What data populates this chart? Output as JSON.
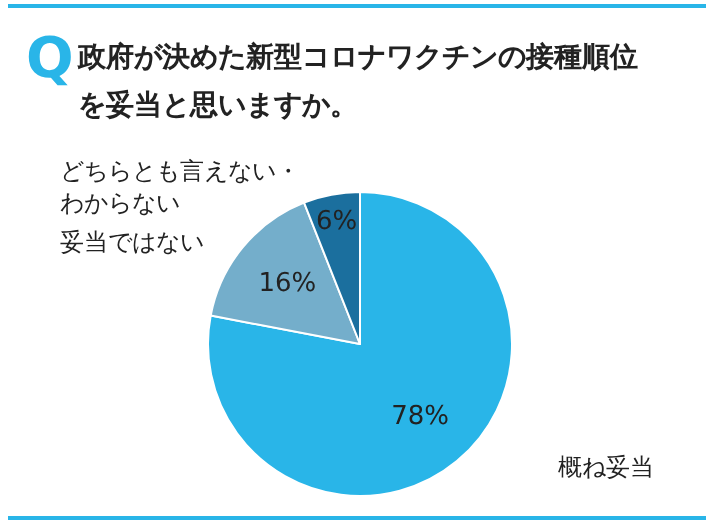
{
  "chart_data": {
    "type": "pie",
    "title": "Q政府が決めた新型コロナワクチンの接種順位を妥当と思いますか。",
    "categories": [
      "概ね妥当",
      "妥当ではない",
      "どちらとも言えない・わからない"
    ],
    "values": [
      78,
      16,
      6
    ],
    "value_labels": [
      "78%",
      "16%",
      "6%"
    ],
    "colors": [
      "#29b5e8",
      "#74aecb",
      "#1b6f9e"
    ],
    "legend": false
  }
}
